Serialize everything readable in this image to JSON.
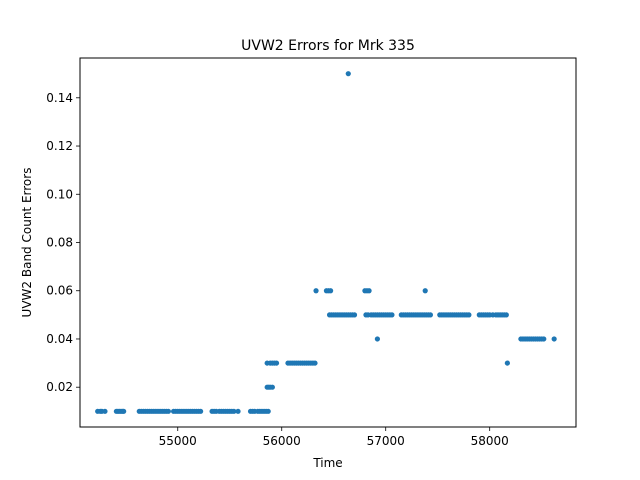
{
  "chart_data": {
    "type": "scatter",
    "title": "UVW2 Errors for Mrk 335",
    "xlabel": "Time",
    "ylabel": "UVW2 Band Count Errors",
    "xlim": [
      54060,
      58830
    ],
    "ylim": [
      0.0035,
      0.1565
    ],
    "xticks": [
      55000,
      56000,
      57000,
      58000
    ],
    "yticks": [
      0.02,
      0.04,
      0.06,
      0.08,
      0.1,
      0.12,
      0.14
    ],
    "ytick_labels": [
      "0.02",
      "0.04",
      "0.06",
      "0.08",
      "0.10",
      "0.12",
      "0.14"
    ],
    "grid": false,
    "marker_color": "#1f77b4",
    "series": [
      {
        "x": [
          54230,
          54255,
          54270,
          54300,
          54410,
          54425,
          54440,
          54455,
          54470,
          54480,
          54630,
          54650,
          54670,
          54690,
          54710,
          54730,
          54750,
          54770,
          54790,
          54810,
          54830,
          54850,
          54870,
          54890,
          54910,
          54960,
          54980,
          55000,
          55020,
          55040,
          55060,
          55080,
          55100,
          55120,
          55140,
          55160,
          55180,
          55200,
          55220,
          55330,
          55350,
          55370,
          55400,
          55420,
          55440,
          55460,
          55480,
          55500,
          55520,
          55540,
          55580,
          55700,
          55720,
          55740,
          55770,
          55790,
          55810,
          55830,
          55850,
          55870,
          55860,
          55875,
          55890,
          55910,
          55860,
          55890,
          55910,
          55930,
          55950,
          56060,
          56080,
          56100,
          56120,
          56140,
          56160,
          56180,
          56200,
          56220,
          56240,
          56260,
          56280,
          56300,
          56320,
          56330,
          56430,
          56450,
          56470,
          56460,
          56480,
          56500,
          56520,
          56540,
          56560,
          56580,
          56600,
          56620,
          56640,
          56660,
          56680,
          56700,
          56640,
          56800,
          56820,
          56840,
          56810,
          56830,
          56860,
          56880,
          56900,
          56920,
          56940,
          56960,
          56980,
          57000,
          57020,
          57040,
          57060,
          56920,
          57150,
          57170,
          57190,
          57210,
          57230,
          57250,
          57270,
          57290,
          57310,
          57330,
          57350,
          57370,
          57390,
          57410,
          57430,
          57380,
          57520,
          57540,
          57560,
          57580,
          57600,
          57620,
          57640,
          57660,
          57680,
          57700,
          57720,
          57740,
          57760,
          57780,
          57800,
          57900,
          57920,
          57940,
          57960,
          57980,
          58000,
          58030,
          58060,
          58080,
          58100,
          58120,
          58140,
          58160,
          58170,
          58300,
          58320,
          58340,
          58360,
          58380,
          58400,
          58420,
          58440,
          58460,
          58480,
          58500,
          58520,
          58620
        ],
        "y": [
          0.01,
          0.01,
          0.01,
          0.01,
          0.01,
          0.01,
          0.01,
          0.01,
          0.01,
          0.01,
          0.01,
          0.01,
          0.01,
          0.01,
          0.01,
          0.01,
          0.01,
          0.01,
          0.01,
          0.01,
          0.01,
          0.01,
          0.01,
          0.01,
          0.01,
          0.01,
          0.01,
          0.01,
          0.01,
          0.01,
          0.01,
          0.01,
          0.01,
          0.01,
          0.01,
          0.01,
          0.01,
          0.01,
          0.01,
          0.01,
          0.01,
          0.01,
          0.01,
          0.01,
          0.01,
          0.01,
          0.01,
          0.01,
          0.01,
          0.01,
          0.01,
          0.01,
          0.01,
          0.01,
          0.01,
          0.01,
          0.01,
          0.01,
          0.01,
          0.01,
          0.02,
          0.02,
          0.02,
          0.02,
          0.03,
          0.03,
          0.03,
          0.03,
          0.03,
          0.03,
          0.03,
          0.03,
          0.03,
          0.03,
          0.03,
          0.03,
          0.03,
          0.03,
          0.03,
          0.03,
          0.03,
          0.03,
          0.03,
          0.06,
          0.06,
          0.06,
          0.06,
          0.05,
          0.05,
          0.05,
          0.05,
          0.05,
          0.05,
          0.05,
          0.05,
          0.05,
          0.05,
          0.05,
          0.05,
          0.05,
          0.15,
          0.06,
          0.06,
          0.06,
          0.05,
          0.05,
          0.05,
          0.05,
          0.05,
          0.05,
          0.05,
          0.05,
          0.05,
          0.05,
          0.05,
          0.05,
          0.05,
          0.04,
          0.05,
          0.05,
          0.05,
          0.05,
          0.05,
          0.05,
          0.05,
          0.05,
          0.05,
          0.05,
          0.05,
          0.05,
          0.05,
          0.05,
          0.05,
          0.06,
          0.05,
          0.05,
          0.05,
          0.05,
          0.05,
          0.05,
          0.05,
          0.05,
          0.05,
          0.05,
          0.05,
          0.05,
          0.05,
          0.05,
          0.05,
          0.05,
          0.05,
          0.05,
          0.05,
          0.05,
          0.05,
          0.05,
          0.05,
          0.05,
          0.05,
          0.05,
          0.05,
          0.05,
          0.03,
          0.04,
          0.04,
          0.04,
          0.04,
          0.04,
          0.04,
          0.04,
          0.04,
          0.04,
          0.04,
          0.04,
          0.04,
          0.04
        ]
      }
    ]
  }
}
